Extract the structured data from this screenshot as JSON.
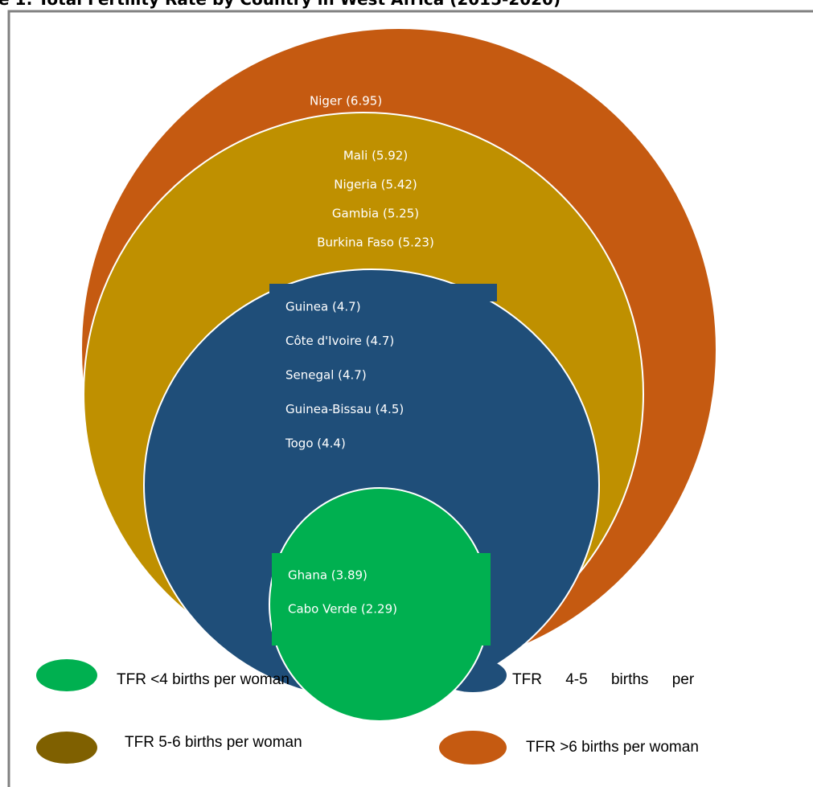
{
  "title": "e 1: Total Fertility Rate by Country in West Africa (2015-2020)",
  "groups": [
    {
      "legend": "TFR >6 births per woman",
      "color": "#c55a11",
      "items": [
        "Niger (6.95)"
      ]
    },
    {
      "legend": "TFR 5-6 births per woman",
      "color": "#bf9000",
      "legend_color": "#7f6000",
      "items": [
        "Mali (5.92)",
        "Nigeria (5.42)",
        "Gambia (5.25)",
        "Burkina Faso (5.23)"
      ]
    },
    {
      "legend": "TFR 4-5 births per",
      "color": "#1f4e79",
      "items": [
        "Guinea (4.7)",
        "Côte d'Ivoire (4.7)",
        "Senegal (4.7)",
        "Guinea-Bissau (4.5)",
        "Togo (4.4)"
      ]
    },
    {
      "legend": "TFR <4 births per woman",
      "color": "#00b050",
      "items": [
        "Ghana (3.89)",
        "Cabo Verde (2.29)"
      ]
    }
  ]
}
